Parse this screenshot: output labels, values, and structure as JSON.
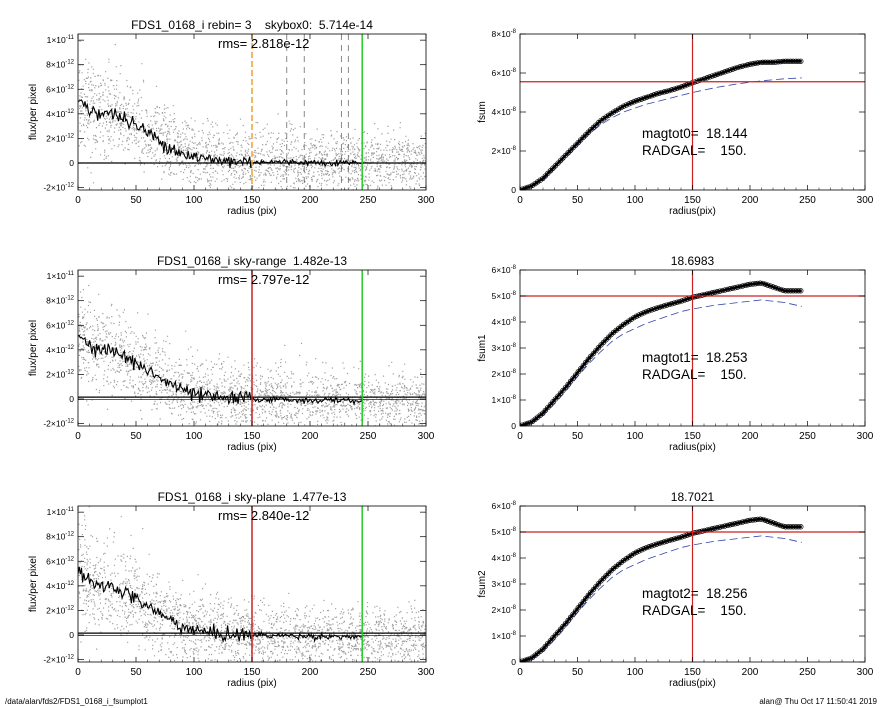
{
  "footer": {
    "path": "/data/alan/fds2/FDS1_0168_i_fsumplot1",
    "stamp": "alan@  Thu Oct 17 11:50:41 2019"
  },
  "colors": {
    "scatter": "#a0a0a0",
    "profile": "#000000",
    "green_line": "#22cc22",
    "red_line": "#cc2222",
    "orange_line": "#f0a030",
    "dashed_blue": "#3344aa"
  },
  "chart_data": [
    {
      "type": "scatter",
      "title": "FDS1_0168_i rebin= 3    skybox0:  5.714e-14",
      "rms_label": "rms= 2.818e-12",
      "xlabel": "radius (pix)",
      "ylabel": "flux/per pixel",
      "xlim": [
        0,
        300
      ],
      "ylim": [
        -2.2e-12,
        1.05e-11
      ],
      "xticks": [
        0,
        50,
        100,
        150,
        200,
        250,
        300
      ],
      "xticklabels": [
        "0",
        "50",
        "100",
        "150",
        "200",
        "250",
        "300"
      ],
      "yticks": [
        -2e-12,
        0,
        2e-12,
        4e-12,
        6e-12,
        8e-12,
        1e-11
      ],
      "yticklabels": [
        [
          "-2×10",
          "-12"
        ],
        [
          "0",
          ""
        ],
        [
          "2×10",
          "-12"
        ],
        [
          "4×10",
          "-12"
        ],
        [
          "6×10",
          "-12"
        ],
        [
          "8×10",
          "-12"
        ],
        [
          "1×10",
          "-11"
        ]
      ],
      "profile": {
        "x": [
          0,
          5,
          10,
          20,
          30,
          40,
          50,
          60,
          70,
          80,
          90,
          100,
          110,
          120,
          130,
          150,
          175,
          200,
          225,
          245
        ],
        "y": [
          5.5e-12,
          4.8e-12,
          4.3e-12,
          4.1e-12,
          4e-12,
          3.6e-12,
          3e-12,
          2.5e-12,
          1.8e-12,
          1.3e-12,
          8e-13,
          5e-13,
          3e-13,
          2e-13,
          1.5e-13,
          1e-13,
          8e-14,
          5e-14,
          3e-14,
          2e-14
        ]
      },
      "baseline": 0,
      "vlines": [
        {
          "x": 150,
          "color": "orange",
          "style": "dashed"
        },
        {
          "x": 245,
          "color": "green",
          "style": "solid"
        }
      ],
      "grey_dashes": [
        180,
        195,
        227,
        233
      ]
    },
    {
      "type": "line",
      "title": "",
      "xlabel": "radius(pix)",
      "ylabel": "fsum",
      "xlim": [
        0,
        300
      ],
      "ylim": [
        0,
        8e-08
      ],
      "xticks": [
        0,
        50,
        100,
        150,
        200,
        250,
        300
      ],
      "xticklabels": [
        "0",
        "50",
        "100",
        "150",
        "200",
        "250",
        "300"
      ],
      "yticks": [
        0,
        2e-08,
        4e-08,
        6e-08,
        8e-08
      ],
      "yticklabels": [
        [
          "0",
          ""
        ],
        [
          "2×10",
          "-8"
        ],
        [
          "4×10",
          "-8"
        ],
        [
          "6×10",
          "-8"
        ],
        [
          "8×10",
          "-8"
        ]
      ],
      "curve": {
        "x": [
          0,
          10,
          20,
          30,
          40,
          50,
          60,
          70,
          80,
          90,
          100,
          110,
          120,
          130,
          140,
          150,
          160,
          170,
          180,
          190,
          200,
          210,
          220,
          230,
          245
        ],
        "y": [
          0,
          2e-09,
          6e-09,
          1.2e-08,
          1.8e-08,
          2.4e-08,
          3e-08,
          3.55e-08,
          3.95e-08,
          4.3e-08,
          4.55e-08,
          4.75e-08,
          4.95e-08,
          5.1e-08,
          5.28e-08,
          5.5e-08,
          5.7e-08,
          5.9e-08,
          6.1e-08,
          6.3e-08,
          6.45e-08,
          6.55e-08,
          6.55e-08,
          6.6e-08,
          6.6e-08
        ]
      },
      "dashed": {
        "x": [
          0,
          10,
          20,
          30,
          40,
          50,
          60,
          70,
          80,
          90,
          100,
          110,
          120,
          130,
          140,
          150,
          170,
          190,
          210,
          230,
          245
        ],
        "y": [
          0,
          1.5e-09,
          5e-09,
          1.05e-08,
          1.65e-08,
          2.25e-08,
          2.85e-08,
          3.35e-08,
          3.7e-08,
          4e-08,
          4.2e-08,
          4.4e-08,
          4.55e-08,
          4.7e-08,
          4.85e-08,
          5e-08,
          5.25e-08,
          5.45e-08,
          5.6e-08,
          5.7e-08,
          5.75e-08
        ]
      },
      "hline": 5.55e-08,
      "vline": 150,
      "annotations": [
        "magtot0=  18.144",
        "RADGAL=    150."
      ]
    },
    {
      "type": "scatter",
      "title": "FDS1_0168_i sky-range  1.482e-13",
      "rms_label": "rms= 2.797e-12",
      "xlabel": "radius (pix)",
      "ylabel": "flux/per pixel",
      "xlim": [
        0,
        300
      ],
      "ylim": [
        -2.2e-12,
        1.05e-11
      ],
      "xticks": [
        0,
        50,
        100,
        150,
        200,
        250,
        300
      ],
      "xticklabels": [
        "0",
        "50",
        "100",
        "150",
        "200",
        "250",
        "300"
      ],
      "yticks": [
        -2e-12,
        0,
        2e-12,
        4e-12,
        6e-12,
        8e-12,
        1e-11
      ],
      "yticklabels": [
        [
          "-2×10",
          "-12"
        ],
        [
          "0",
          ""
        ],
        [
          "2×10",
          "-12"
        ],
        [
          "4×10",
          "-12"
        ],
        [
          "6×10",
          "-12"
        ],
        [
          "8×10",
          "-12"
        ],
        [
          "1×10",
          "-11"
        ]
      ],
      "profile": {
        "x": [
          0,
          5,
          10,
          20,
          30,
          40,
          50,
          60,
          70,
          80,
          90,
          100,
          110,
          120,
          130,
          150,
          175,
          200,
          225,
          245
        ],
        "y": [
          5.4e-12,
          4.7e-12,
          4.2e-12,
          4e-12,
          3.9e-12,
          3.5e-12,
          2.9e-12,
          2.4e-12,
          1.7e-12,
          1.2e-12,
          7e-13,
          4e-13,
          2e-13,
          1e-13,
          5e-14,
          0,
          -5e-14,
          -1e-13,
          -1.2e-13,
          -1.3e-13
        ]
      },
      "baseline": 1.482e-13,
      "vlines": [
        {
          "x": 150,
          "color": "red",
          "style": "solid"
        },
        {
          "x": 245,
          "color": "green",
          "style": "solid"
        }
      ],
      "grey_dashes": []
    },
    {
      "type": "line",
      "title": "18.6983",
      "xlabel": "radius(pix)",
      "ylabel": "fsum1",
      "xlim": [
        0,
        300
      ],
      "ylim": [
        0,
        6e-08
      ],
      "xticks": [
        0,
        50,
        100,
        150,
        200,
        250,
        300
      ],
      "xticklabels": [
        "0",
        "50",
        "100",
        "150",
        "200",
        "250",
        "300"
      ],
      "yticks": [
        0,
        1e-08,
        2e-08,
        3e-08,
        4e-08,
        5e-08,
        6e-08
      ],
      "yticklabels": [
        [
          "0",
          ""
        ],
        [
          "1×10",
          "-8"
        ],
        [
          "2×10",
          "-8"
        ],
        [
          "3×10",
          "-8"
        ],
        [
          "4×10",
          "-8"
        ],
        [
          "5×10",
          "-8"
        ],
        [
          "6×10",
          "-8"
        ]
      ],
      "curve": {
        "x": [
          0,
          10,
          20,
          30,
          40,
          50,
          60,
          70,
          80,
          90,
          100,
          110,
          120,
          130,
          140,
          150,
          160,
          170,
          180,
          190,
          200,
          210,
          220,
          230,
          245
        ],
        "y": [
          0,
          1.5e-09,
          5e-09,
          1e-08,
          1.5e-08,
          2.05e-08,
          2.6e-08,
          3.1e-08,
          3.55e-08,
          3.9e-08,
          4.2e-08,
          4.4e-08,
          4.55e-08,
          4.68e-08,
          4.8e-08,
          4.95e-08,
          5.05e-08,
          5.15e-08,
          5.25e-08,
          5.35e-08,
          5.45e-08,
          5.5e-08,
          5.35e-08,
          5.2e-08,
          5.2e-08
        ]
      },
      "dashed": {
        "x": [
          0,
          10,
          20,
          30,
          40,
          50,
          60,
          70,
          80,
          90,
          100,
          110,
          120,
          130,
          140,
          150,
          170,
          190,
          210,
          230,
          245
        ],
        "y": [
          0,
          1e-09,
          4e-09,
          8.5e-09,
          1.35e-08,
          1.9e-08,
          2.4e-08,
          2.85e-08,
          3.25e-08,
          3.55e-08,
          3.75e-08,
          3.95e-08,
          4.1e-08,
          4.25e-08,
          4.4e-08,
          4.5e-08,
          4.65e-08,
          4.75e-08,
          4.85e-08,
          4.75e-08,
          4.6e-08
        ]
      },
      "hline": 5e-08,
      "vline": 150,
      "annotations": [
        "magtot1=  18.253",
        "RADGAL=    150."
      ]
    },
    {
      "type": "scatter",
      "title": "FDS1_0168_i sky-plane  1.477e-13",
      "rms_label": "rms= 2.840e-12",
      "xlabel": "radius (pix)",
      "ylabel": "flux/per pixel",
      "xlim": [
        0,
        300
      ],
      "ylim": [
        -2.2e-12,
        1.05e-11
      ],
      "xticks": [
        0,
        50,
        100,
        150,
        200,
        250,
        300
      ],
      "xticklabels": [
        "0",
        "50",
        "100",
        "150",
        "200",
        "250",
        "300"
      ],
      "yticks": [
        -2e-12,
        0,
        2e-12,
        4e-12,
        6e-12,
        8e-12,
        1e-11
      ],
      "yticklabels": [
        [
          "-2×10",
          "-12"
        ],
        [
          "0",
          ""
        ],
        [
          "2×10",
          "-12"
        ],
        [
          "4×10",
          "-12"
        ],
        [
          "6×10",
          "-12"
        ],
        [
          "8×10",
          "-12"
        ],
        [
          "1×10",
          "-11"
        ]
      ],
      "profile": {
        "x": [
          0,
          5,
          10,
          20,
          30,
          40,
          50,
          60,
          70,
          80,
          90,
          100,
          110,
          120,
          130,
          150,
          175,
          200,
          225,
          245
        ],
        "y": [
          5.4e-12,
          4.7e-12,
          4.2e-12,
          4e-12,
          3.9e-12,
          3.5e-12,
          2.9e-12,
          2.4e-12,
          1.7e-12,
          1.2e-12,
          7e-13,
          4e-13,
          2e-13,
          1e-13,
          5e-14,
          0,
          -5e-14,
          -1e-13,
          -1.2e-13,
          -1.3e-13
        ]
      },
      "baseline": 1.477e-13,
      "vlines": [
        {
          "x": 150,
          "color": "red",
          "style": "solid"
        },
        {
          "x": 245,
          "color": "green",
          "style": "solid"
        }
      ],
      "grey_dashes": []
    },
    {
      "type": "line",
      "title": "18.7021",
      "xlabel": "radius(pix)",
      "ylabel": "fsum2",
      "xlim": [
        0,
        300
      ],
      "ylim": [
        0,
        6e-08
      ],
      "xticks": [
        0,
        50,
        100,
        150,
        200,
        250,
        300
      ],
      "xticklabels": [
        "0",
        "50",
        "100",
        "150",
        "200",
        "250",
        "300"
      ],
      "yticks": [
        0,
        1e-08,
        2e-08,
        3e-08,
        4e-08,
        5e-08,
        6e-08
      ],
      "yticklabels": [
        [
          "0",
          ""
        ],
        [
          "1×10",
          "-8"
        ],
        [
          "2×10",
          "-8"
        ],
        [
          "3×10",
          "-8"
        ],
        [
          "4×10",
          "-8"
        ],
        [
          "5×10",
          "-8"
        ],
        [
          "6×10",
          "-8"
        ]
      ],
      "curve": {
        "x": [
          0,
          10,
          20,
          30,
          40,
          50,
          60,
          70,
          80,
          90,
          100,
          110,
          120,
          130,
          140,
          150,
          160,
          170,
          180,
          190,
          200,
          210,
          220,
          230,
          245
        ],
        "y": [
          0,
          1.5e-09,
          5e-09,
          1e-08,
          1.5e-08,
          2.05e-08,
          2.6e-08,
          3.1e-08,
          3.55e-08,
          3.9e-08,
          4.2e-08,
          4.4e-08,
          4.55e-08,
          4.68e-08,
          4.8e-08,
          4.95e-08,
          5.05e-08,
          5.15e-08,
          5.25e-08,
          5.35e-08,
          5.45e-08,
          5.5e-08,
          5.35e-08,
          5.2e-08,
          5.2e-08
        ]
      },
      "dashed": {
        "x": [
          0,
          10,
          20,
          30,
          40,
          50,
          60,
          70,
          80,
          90,
          100,
          110,
          120,
          130,
          140,
          150,
          170,
          190,
          210,
          230,
          245
        ],
        "y": [
          0,
          1e-09,
          4e-09,
          8.5e-09,
          1.35e-08,
          1.9e-08,
          2.4e-08,
          2.85e-08,
          3.25e-08,
          3.55e-08,
          3.75e-08,
          3.95e-08,
          4.1e-08,
          4.25e-08,
          4.4e-08,
          4.5e-08,
          4.65e-08,
          4.75e-08,
          4.85e-08,
          4.75e-08,
          4.6e-08
        ]
      },
      "hline": 5e-08,
      "vline": 150,
      "annotations": [
        "magtot2=  18.256",
        "RADGAL=    150."
      ]
    }
  ]
}
